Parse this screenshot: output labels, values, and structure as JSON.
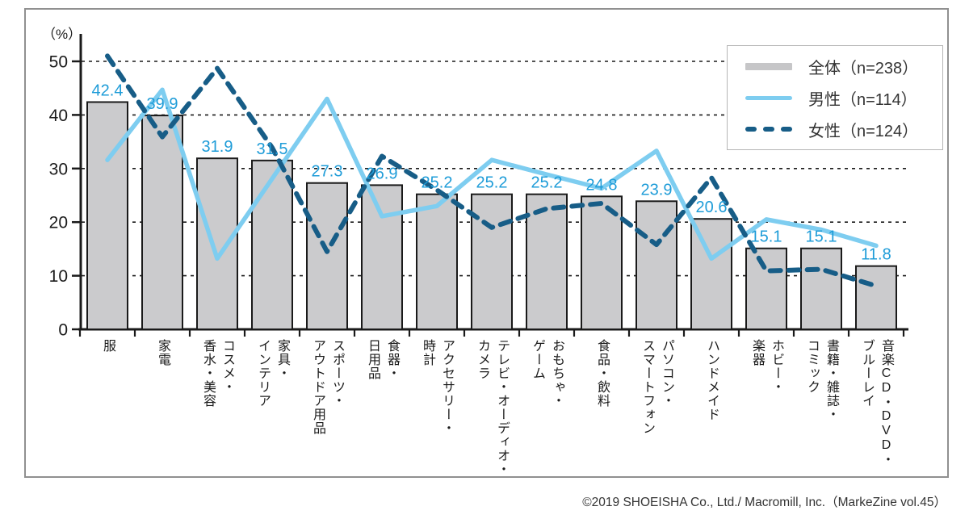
{
  "chart_data": {
    "type": "bar+line combo",
    "unit_label": "（%）",
    "y_ticks": [
      0,
      10,
      20,
      30,
      40,
      50
    ],
    "ylim": [
      0,
      55
    ],
    "grid": "horizontal-dashed",
    "legend_position": "top-right",
    "categories": [
      "服",
      "家電",
      "コスメ・香水・美容",
      "家具・インテリア",
      "スポーツ・アウトドア用品",
      "食器・日用品",
      "アクセサリー・時計",
      "テレビ・オーディオ・カメラ",
      "おもちゃ・ゲーム",
      "食品・飲料",
      "パソコン・スマートフォン",
      "ハンドメイド",
      "ホビー・楽器",
      "書籍・雑誌・コミック",
      "音楽CD・DVD・ブルーレイ"
    ],
    "categories_display": [
      "服",
      "家電",
      "コスメ・\n香水・美容",
      "家具・\nインテリア",
      "スポーツ・\nアウトドア用品",
      "食器・\n日用品",
      "アクセサリー・\n時計",
      "テレビ・オーディオ・\nカメラ",
      "おもちゃ・\nゲーム",
      "食品・飲料",
      "パソコン・\nスマートフォン",
      "ハンドメイド",
      "ホビー・\n楽器",
      "書籍・雑誌・\nコミック",
      "音楽CD・DVD・\nブルーレイ"
    ],
    "series": [
      {
        "name": "全体（n=238）",
        "type": "bar",
        "color": "#cbcbcd",
        "values": [
          42.4,
          39.9,
          31.9,
          31.5,
          27.3,
          26.9,
          25.2,
          25.2,
          25.2,
          24.8,
          23.9,
          20.6,
          15.1,
          15.1,
          11.8
        ],
        "labels": [
          "42.4",
          "39.9",
          "31.9",
          "31.5",
          "27.3",
          "26.9",
          "25.2",
          "25.2",
          "25.2",
          "24.8",
          "23.9",
          "20.6",
          "15.1",
          "15.1",
          "11.8"
        ]
      },
      {
        "name": "男性（n=114）",
        "type": "line",
        "color": "#7ecdf0",
        "values": [
          31.6,
          44.7,
          13.2,
          28.1,
          43.0,
          21.1,
          23.0,
          31.6,
          28.9,
          26.3,
          33.3,
          13.2,
          20.5,
          18.6,
          15.6
        ]
      },
      {
        "name": "女性（n=124）",
        "type": "line-dashed",
        "color": "#175d87",
        "values": [
          51.0,
          35.9,
          48.7,
          33.9,
          14.5,
          32.3,
          26.0,
          19.0,
          22.5,
          23.5,
          15.8,
          28.3,
          10.9,
          11.2,
          8.1
        ]
      }
    ]
  },
  "legend": {
    "items": [
      {
        "label": "全体（n=238）",
        "swatch": "bar-gray"
      },
      {
        "label": "男性（n=114）",
        "swatch": "line-lightblue"
      },
      {
        "label": "女性（n=124）",
        "swatch": "dashed-darkblue"
      }
    ]
  },
  "colors": {
    "bar_fill": "#cbcbcd",
    "bar_border": "#1a1a1a",
    "male_line": "#7ecdf0",
    "female_line": "#175d87",
    "value_label": "#1e9cd8",
    "axis": "#1a1a1a",
    "frame_border": "#909090"
  },
  "footer": {
    "credit": "©2019 SHOEISHA Co., Ltd./ Macromill, Inc.（MarkeZine vol.45）"
  }
}
